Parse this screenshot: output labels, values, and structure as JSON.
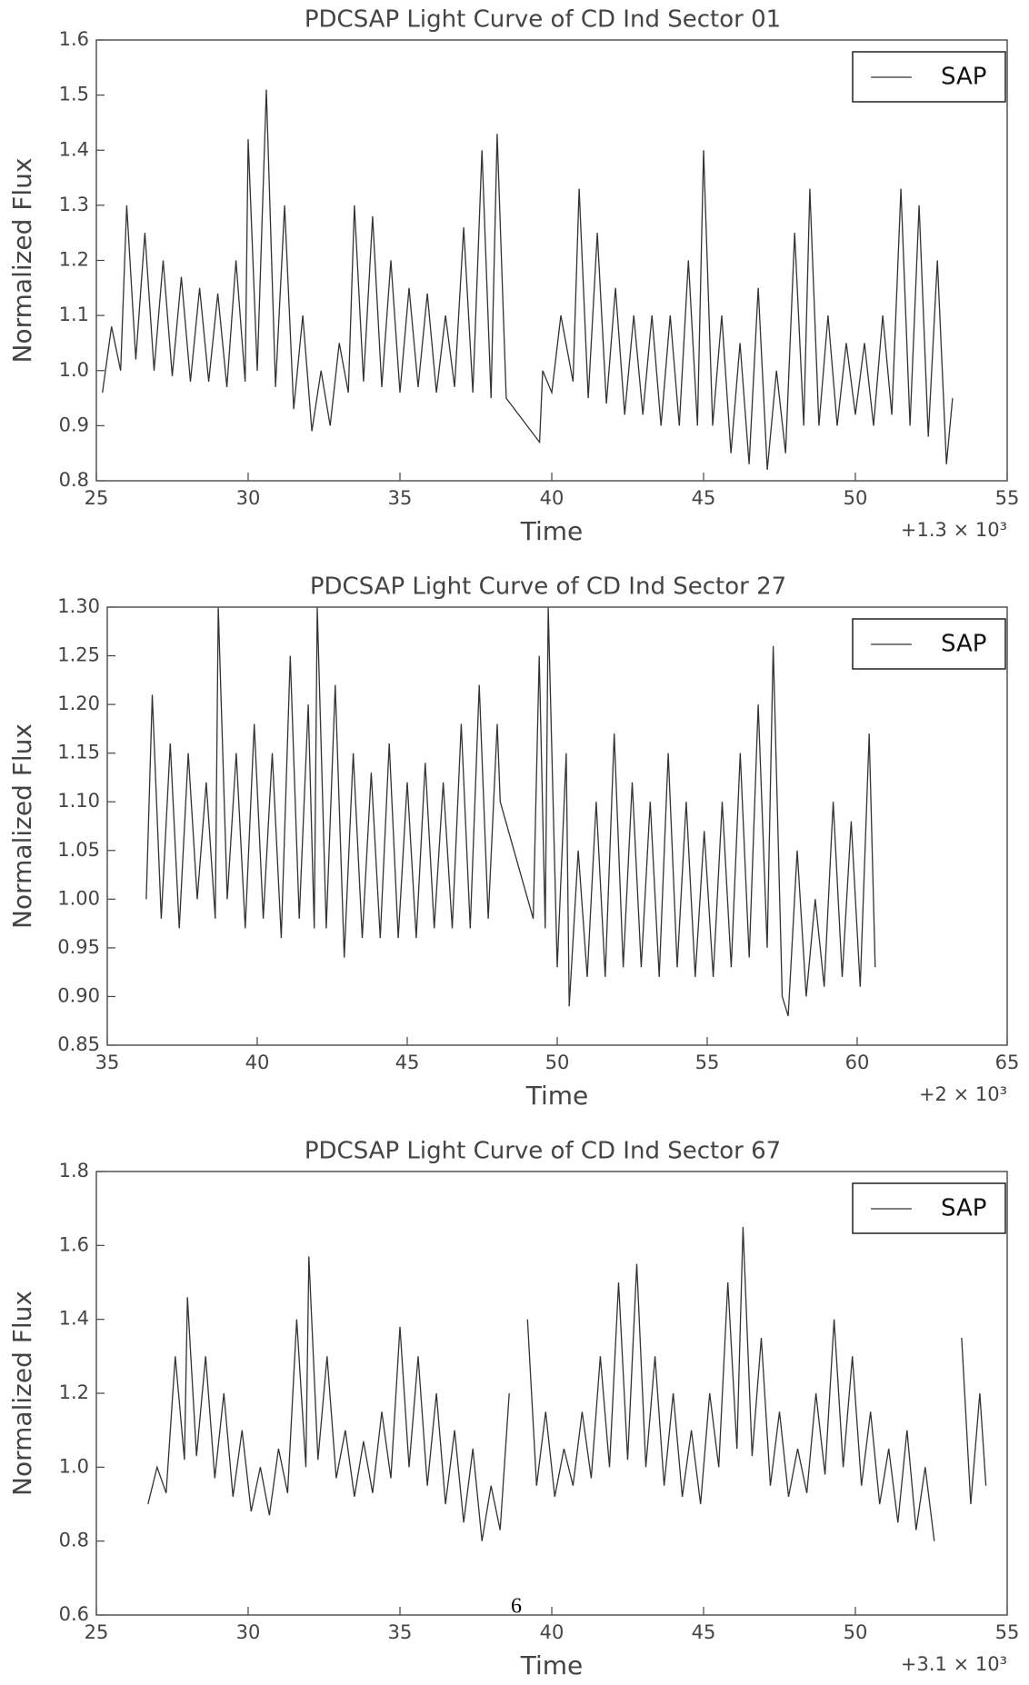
{
  "chart_data": [
    {
      "type": "line",
      "title": "PDCSAP Light Curve of CD Ind Sector 01",
      "xlabel": "Time",
      "ylabel": "Normalized Flux",
      "x_offset_label": "+1.3 × 10³",
      "legend": "upper right",
      "xlim": [
        25,
        55
      ],
      "xticks": [
        25,
        30,
        35,
        40,
        45,
        50,
        55
      ],
      "ylim": [
        0.8,
        1.6
      ],
      "yticks": [
        0.8,
        0.9,
        {
          "value": 1,
          "label": "1.0"
        },
        1.1,
        1.2,
        1.3,
        1.4,
        1.5,
        1.6
      ],
      "x": [
        25.2,
        25.5,
        25.8,
        26.0,
        26.3,
        26.6,
        26.9,
        27.2,
        27.5,
        27.8,
        28.1,
        28.4,
        28.7,
        29.0,
        29.3,
        29.6,
        29.9,
        30.0,
        30.3,
        30.6,
        30.9,
        31.2,
        31.5,
        31.8,
        32.1,
        32.4,
        32.7,
        33.0,
        33.3,
        33.5,
        33.8,
        34.1,
        34.4,
        34.7,
        35.0,
        35.3,
        35.6,
        35.9,
        36.2,
        36.5,
        36.8,
        37.1,
        37.4,
        37.7,
        38.0,
        38.2,
        38.5,
        39.6,
        39.7,
        40.0,
        40.3,
        40.7,
        40.9,
        41.2,
        41.5,
        41.8,
        42.1,
        42.4,
        42.7,
        43.0,
        43.3,
        43.6,
        43.9,
        44.2,
        44.5,
        44.8,
        45.0,
        45.3,
        45.6,
        45.9,
        46.2,
        46.5,
        46.8,
        47.1,
        47.4,
        47.7,
        48.0,
        48.3,
        48.5,
        48.8,
        49.1,
        49.4,
        49.7,
        50.0,
        50.3,
        50.6,
        50.9,
        51.2,
        51.5,
        51.8,
        52.1,
        52.4,
        52.7,
        53.0,
        53.2
      ],
      "series": [
        {
          "name": "SAP",
          "color": "#333333",
          "values": [
            0.96,
            1.08,
            1.0,
            1.3,
            1.02,
            1.25,
            1.0,
            1.2,
            0.99,
            1.17,
            0.98,
            1.15,
            0.98,
            1.14,
            0.97,
            1.2,
            0.98,
            1.42,
            1.0,
            1.51,
            0.97,
            1.3,
            0.93,
            1.1,
            0.89,
            1.0,
            0.9,
            1.05,
            0.96,
            1.3,
            0.98,
            1.28,
            0.97,
            1.2,
            0.96,
            1.15,
            0.97,
            1.14,
            0.96,
            1.1,
            0.97,
            1.26,
            0.96,
            1.4,
            0.95,
            1.43,
            0.95,
            0.87,
            1.0,
            0.96,
            1.1,
            0.98,
            1.33,
            0.95,
            1.25,
            0.94,
            1.15,
            0.92,
            1.1,
            0.92,
            1.1,
            0.9,
            1.1,
            0.9,
            1.2,
            0.9,
            1.4,
            0.9,
            1.1,
            0.85,
            1.05,
            0.83,
            1.15,
            0.82,
            1.0,
            0.85,
            1.25,
            0.9,
            1.33,
            0.9,
            1.1,
            0.9,
            1.05,
            0.92,
            1.05,
            0.9,
            1.1,
            0.92,
            1.33,
            0.9,
            1.3,
            0.88,
            1.2,
            0.83,
            0.95
          ]
        }
      ]
    },
    {
      "type": "line",
      "title": "PDCSAP Light Curve of CD Ind Sector 27",
      "xlabel": "Time",
      "ylabel": "Normalized Flux",
      "x_offset_label": "+2 × 10³",
      "legend": "upper right",
      "xlim": [
        35,
        65
      ],
      "xticks": [
        35,
        40,
        45,
        50,
        55,
        60,
        65
      ],
      "ylim": [
        0.85,
        1.3
      ],
      "yticks": [
        0.85,
        {
          "value": 0.9,
          "label": "0.90"
        },
        0.95,
        {
          "value": 1,
          "label": "1.00"
        },
        1.05,
        {
          "value": 1.1,
          "label": "1.10"
        },
        1.15,
        {
          "value": 1.2,
          "label": "1.20"
        },
        1.25,
        {
          "value": 1.3,
          "label": "1.30"
        }
      ],
      "x": [
        36.3,
        36.5,
        36.8,
        37.1,
        37.4,
        37.7,
        38.0,
        38.3,
        38.6,
        38.7,
        39.0,
        39.3,
        39.6,
        39.9,
        40.2,
        40.5,
        40.8,
        41.1,
        41.4,
        41.7,
        41.9,
        42.0,
        42.3,
        42.6,
        42.9,
        43.2,
        43.5,
        43.8,
        44.1,
        44.4,
        44.7,
        45.0,
        45.3,
        45.6,
        45.9,
        46.2,
        46.5,
        46.8,
        47.1,
        47.4,
        47.7,
        48.0,
        48.1,
        49.2,
        49.4,
        49.6,
        49.7,
        50.0,
        50.3,
        50.4,
        50.7,
        51.0,
        51.3,
        51.6,
        51.9,
        52.2,
        52.5,
        52.8,
        53.1,
        53.4,
        53.7,
        54.0,
        54.3,
        54.6,
        54.9,
        55.2,
        55.5,
        55.8,
        56.1,
        56.4,
        56.7,
        57.0,
        57.2,
        57.5,
        57.7,
        58.0,
        58.3,
        58.6,
        58.9,
        59.2,
        59.5,
        59.8,
        60.1,
        60.4,
        60.6
      ],
      "series": [
        {
          "name": "SAP",
          "color": "#333333",
          "values": [
            1.0,
            1.21,
            0.98,
            1.16,
            0.97,
            1.15,
            1.0,
            1.12,
            0.98,
            1.3,
            1.0,
            1.15,
            0.97,
            1.18,
            0.98,
            1.15,
            0.96,
            1.25,
            0.98,
            1.2,
            0.97,
            1.3,
            0.97,
            1.22,
            0.94,
            1.15,
            0.96,
            1.13,
            0.96,
            1.16,
            0.96,
            1.12,
            0.96,
            1.14,
            0.97,
            1.12,
            0.97,
            1.18,
            0.97,
            1.22,
            0.98,
            1.18,
            1.1,
            0.98,
            1.25,
            0.97,
            1.3,
            0.93,
            1.15,
            0.89,
            1.05,
            0.92,
            1.1,
            0.92,
            1.17,
            0.93,
            1.12,
            0.93,
            1.1,
            0.92,
            1.15,
            0.93,
            1.1,
            0.92,
            1.07,
            0.92,
            1.1,
            0.93,
            1.15,
            0.94,
            1.2,
            0.95,
            1.26,
            0.9,
            0.88,
            1.05,
            0.9,
            1.0,
            0.91,
            1.1,
            0.92,
            1.08,
            0.91,
            1.17,
            0.93
          ]
        }
      ]
    },
    {
      "type": "line",
      "title": "PDCSAP Light Curve of CD Ind Sector 67",
      "xlabel": "Time",
      "ylabel": "Normalized Flux",
      "x_offset_label": "+3.1 × 10³",
      "legend": "upper right",
      "xlim": [
        25,
        55
      ],
      "xticks": [
        25,
        30,
        35,
        40,
        45,
        50,
        55
      ],
      "ylim": [
        0.6,
        1.8
      ],
      "yticks": [
        0.6,
        0.8,
        {
          "value": 1,
          "label": "1.0"
        },
        1.2,
        1.4,
        1.6,
        1.8
      ],
      "x": [
        26.7,
        27.0,
        27.3,
        27.6,
        27.9,
        28.0,
        28.3,
        28.6,
        28.9,
        29.2,
        29.5,
        29.8,
        30.1,
        30.4,
        30.7,
        31.0,
        31.3,
        31.6,
        31.9,
        32.0,
        32.3,
        32.6,
        32.9,
        33.2,
        33.5,
        33.8,
        34.1,
        34.4,
        34.7,
        35.0,
        35.3,
        35.6,
        35.9,
        36.2,
        36.5,
        36.8,
        37.1,
        37.4,
        37.7,
        38.0,
        38.3,
        38.6,
        38.8,
        39.2,
        39.5,
        39.8,
        40.1,
        40.4,
        40.7,
        41.0,
        41.3,
        41.6,
        41.9,
        42.2,
        42.5,
        42.8,
        43.1,
        43.4,
        43.7,
        44.0,
        44.3,
        44.6,
        44.9,
        45.2,
        45.5,
        45.8,
        46.1,
        46.3,
        46.6,
        46.9,
        47.2,
        47.5,
        47.8,
        48.1,
        48.4,
        48.7,
        49.0,
        49.3,
        49.6,
        49.9,
        50.2,
        50.5,
        50.8,
        51.1,
        51.4,
        51.7,
        52.0,
        52.3,
        52.6,
        53.0,
        53.5,
        53.8,
        54.1,
        54.3
      ],
      "series": [
        {
          "name": "SAP",
          "color": "#333333",
          "values": [
            0.9,
            1.0,
            0.93,
            1.3,
            1.02,
            1.46,
            1.03,
            1.3,
            0.97,
            1.2,
            0.92,
            1.1,
            0.88,
            1.0,
            0.87,
            1.05,
            0.93,
            1.4,
            1.0,
            1.57,
            1.02,
            1.3,
            0.97,
            1.1,
            0.92,
            1.07,
            0.93,
            1.15,
            0.97,
            1.38,
            1.0,
            1.3,
            0.95,
            1.2,
            0.9,
            1.1,
            0.85,
            1.05,
            0.8,
            0.95,
            0.83,
            1.2,
            null,
            1.4,
            0.95,
            1.15,
            0.92,
            1.05,
            0.95,
            1.15,
            0.97,
            1.3,
            1.0,
            1.5,
            1.02,
            1.55,
            1.0,
            1.3,
            0.95,
            1.2,
            0.92,
            1.1,
            0.9,
            1.2,
            1.0,
            1.5,
            1.05,
            1.65,
            1.03,
            1.35,
            0.95,
            1.15,
            0.92,
            1.05,
            0.93,
            1.2,
            0.98,
            1.4,
            1.0,
            1.3,
            0.95,
            1.15,
            0.9,
            1.05,
            0.85,
            1.1,
            0.83,
            1.0,
            0.8,
            null,
            1.35,
            0.9,
            1.2,
            0.95
          ]
        }
      ]
    }
  ],
  "page_number": "6"
}
